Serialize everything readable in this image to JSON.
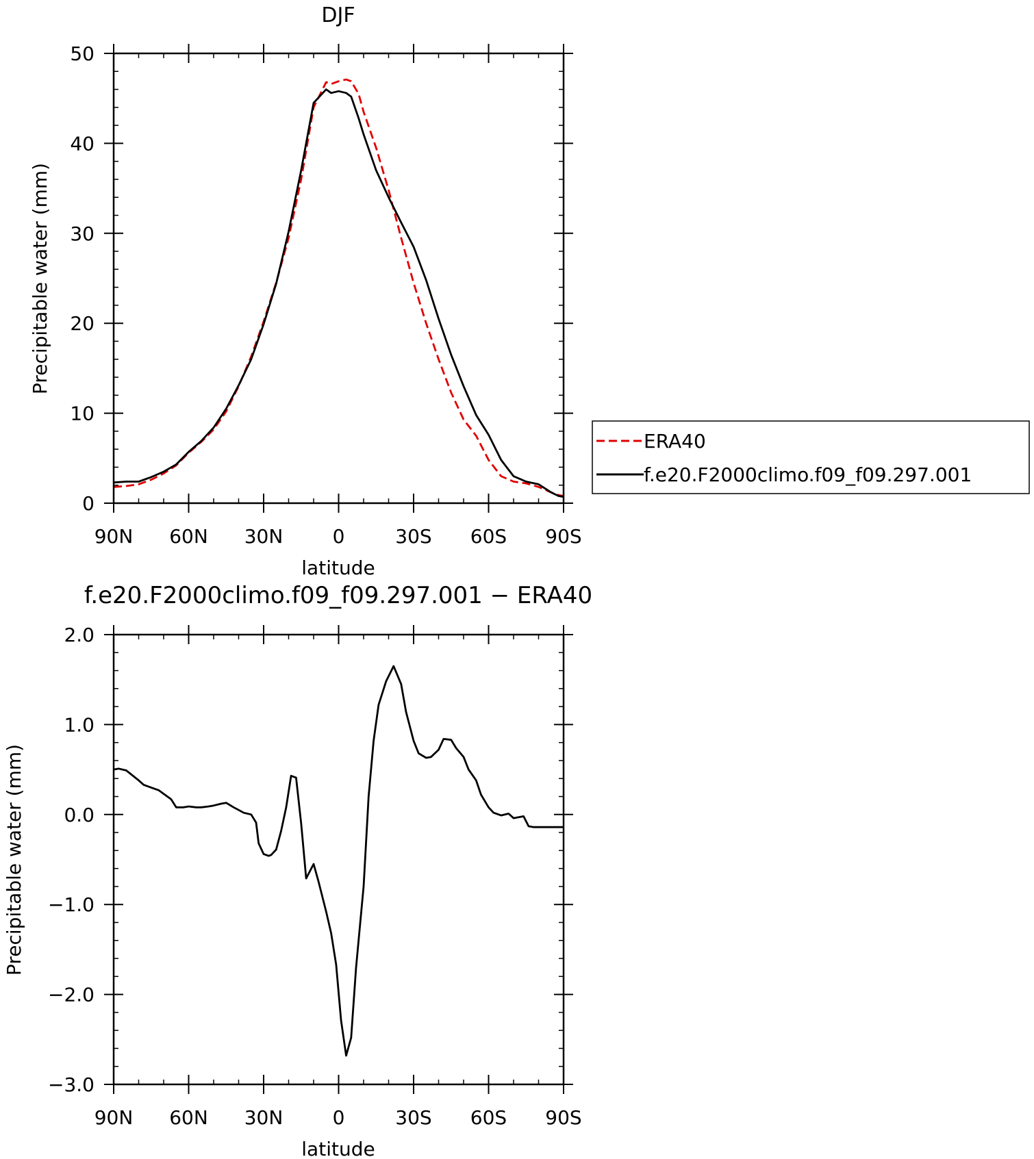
{
  "chart_data": [
    {
      "type": "line",
      "title": "DJF",
      "xlabel": "latitude",
      "ylabel": "Precipitable water (mm)",
      "xlim": [
        -90,
        90
      ],
      "ylim": [
        0,
        50
      ],
      "xticks": [
        -90,
        -60,
        -30,
        0,
        30,
        60,
        90
      ],
      "xtick_labels": [
        "90N",
        "60N",
        "30N",
        "0",
        "30S",
        "60S",
        "90S"
      ],
      "yticks": [
        0,
        10,
        20,
        30,
        40,
        50
      ],
      "ytick_labels": [
        "0",
        "10",
        "20",
        "30",
        "40",
        "50"
      ],
      "y_minor_step": 2,
      "x_minor_step": 10,
      "legend": "outside-right",
      "series": [
        {
          "name": "ERA40",
          "color": "#e00000",
          "dash": "dashed",
          "x": [
            -90,
            -85,
            -80,
            -75,
            -70,
            -65,
            -60,
            -55,
            -50,
            -45,
            -40,
            -35,
            -30,
            -25,
            -20,
            -15,
            -10,
            -5,
            -3,
            0,
            3,
            5,
            8,
            10,
            15,
            20,
            25,
            30,
            35,
            40,
            45,
            50,
            55,
            60,
            65,
            70,
            75,
            80,
            85,
            88,
            90
          ],
          "values": [
            1.8,
            1.9,
            2.1,
            2.6,
            3.3,
            4.2,
            5.6,
            6.8,
            8.2,
            10.2,
            13.0,
            16.3,
            20.2,
            24.5,
            29.5,
            36.0,
            44.0,
            46.8,
            46.6,
            46.9,
            47.1,
            46.9,
            45.5,
            43.5,
            39.5,
            34.8,
            29.5,
            24.5,
            20.0,
            16.0,
            12.3,
            9.3,
            7.5,
            4.8,
            3.0,
            2.4,
            2.2,
            1.8,
            1.2,
            0.9,
            0.8
          ]
        },
        {
          "name": "f.e20.F2000climo.f09_f09.297.001",
          "color": "#000000",
          "dash": "solid",
          "x": [
            -90,
            -85,
            -80,
            -75,
            -70,
            -65,
            -60,
            -55,
            -50,
            -45,
            -40,
            -35,
            -30,
            -25,
            -20,
            -15,
            -10,
            -5,
            -3,
            0,
            3,
            5,
            8,
            10,
            15,
            20,
            25,
            30,
            35,
            40,
            45,
            50,
            55,
            60,
            65,
            70,
            75,
            80,
            85,
            88,
            90
          ],
          "values": [
            2.3,
            2.4,
            2.4,
            2.9,
            3.5,
            4.3,
            5.7,
            6.9,
            8.4,
            10.5,
            13.1,
            16.0,
            19.9,
            24.4,
            30.2,
            37.0,
            44.5,
            46.0,
            45.6,
            45.8,
            45.6,
            45.2,
            42.8,
            41.0,
            37.0,
            34.0,
            31.2,
            28.5,
            24.8,
            20.5,
            16.5,
            13.0,
            9.8,
            7.6,
            4.8,
            3.0,
            2.4,
            2.1,
            1.2,
            0.8,
            0.7
          ]
        }
      ]
    },
    {
      "type": "line",
      "title": "f.e20.F2000climo.f09_f09.297.001 − ERA40",
      "xlabel": "latitude",
      "ylabel": "Precipitable water (mm)",
      "xlim": [
        -90,
        90
      ],
      "ylim": [
        -3,
        2
      ],
      "xticks": [
        -90,
        -60,
        -30,
        0,
        30,
        60,
        90
      ],
      "xtick_labels": [
        "90N",
        "60N",
        "30N",
        "0",
        "30S",
        "60S",
        "90S"
      ],
      "yticks": [
        -3,
        -2,
        -1,
        0,
        1,
        2
      ],
      "ytick_labels": [
        "−3.0",
        "−2.0",
        "−1.0",
        "0.0",
        "1.0",
        "2.0"
      ],
      "y_minor_step": 0.2,
      "x_minor_step": 10,
      "series": [
        {
          "color": "#000000",
          "dash": "solid",
          "x": [
            -90,
            -88,
            -85,
            -80,
            -78,
            -75,
            -72,
            -70,
            -67,
            -65,
            -62,
            -60,
            -57,
            -55,
            -52,
            -50,
            -47,
            -45,
            -42,
            -40,
            -38,
            -35,
            -33,
            -32,
            -30,
            -28,
            -27,
            -25,
            -23,
            -21,
            -19,
            -17,
            -15,
            -13,
            -10,
            -8,
            -5,
            -3,
            -1,
            1,
            3,
            5,
            7,
            10,
            12,
            14,
            16,
            19,
            22,
            25,
            27,
            30,
            32,
            35,
            37,
            40,
            42,
            45,
            47,
            50,
            52,
            55,
            57,
            60,
            62,
            65,
            68,
            70,
            72,
            74,
            76,
            78,
            80,
            82,
            84,
            86,
            88,
            90
          ],
          "values": [
            0.5,
            0.51,
            0.49,
            0.38,
            0.33,
            0.3,
            0.27,
            0.23,
            0.17,
            0.08,
            0.08,
            0.09,
            0.08,
            0.08,
            0.09,
            0.1,
            0.12,
            0.13,
            0.08,
            0.05,
            0.02,
            0.0,
            -0.09,
            -0.32,
            -0.44,
            -0.46,
            -0.45,
            -0.39,
            -0.18,
            0.08,
            0.43,
            0.41,
            -0.1,
            -0.71,
            -0.55,
            -0.75,
            -1.08,
            -1.32,
            -1.67,
            -2.29,
            -2.68,
            -2.48,
            -1.7,
            -0.8,
            0.2,
            0.82,
            1.22,
            1.48,
            1.65,
            1.45,
            1.14,
            0.82,
            0.68,
            0.63,
            0.64,
            0.72,
            0.84,
            0.83,
            0.74,
            0.64,
            0.5,
            0.38,
            0.22,
            0.08,
            0.02,
            -0.01,
            0.01,
            -0.04,
            -0.03,
            -0.02,
            -0.13,
            -0.14,
            -0.14,
            -0.14,
            -0.14,
            -0.14,
            -0.14,
            -0.14
          ]
        }
      ]
    }
  ]
}
